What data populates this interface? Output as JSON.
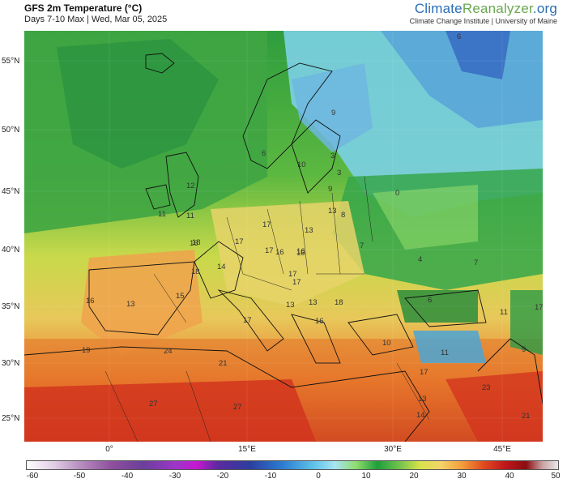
{
  "header": {
    "title": "GFS 2m Temperature (°C)",
    "subtitle": "Days 7-10 Max | Wed, Mar 05, 2025",
    "brand_main": "Climate",
    "brand_accent": "Reanalyzer",
    "brand_suffix": ".org",
    "brand_sub": "Climate Change Institute | University of Maine"
  },
  "lat_labels": [
    "55°N",
    "50°N",
    "45°N",
    "40°N",
    "35°N",
    "30°N",
    "25°N"
  ],
  "lon_labels": [
    "0°",
    "15°E",
    "30°E",
    "45°E"
  ],
  "colorbar": {
    "ticks": [
      "-60",
      "-50",
      "-40",
      "-30",
      "-20",
      "-10",
      "0",
      "10",
      "20",
      "30",
      "40",
      "50"
    ]
  },
  "temperature_labels": [
    "6",
    "9",
    "6",
    "10",
    "3",
    "3",
    "12",
    "11",
    "9",
    "13",
    "0",
    "11",
    "8",
    "16",
    "17",
    "18",
    "13",
    "17",
    "7",
    "18",
    "17",
    "16",
    "4",
    "14",
    "17",
    "7",
    "16",
    "16",
    "17",
    "13",
    "13",
    "15",
    "13",
    "16",
    "18",
    "17",
    "6",
    "11",
    "17",
    "16",
    "10",
    "19",
    "24",
    "11",
    "9",
    "21",
    "17",
    "27",
    "27",
    "23",
    "13",
    "14",
    "21"
  ]
}
